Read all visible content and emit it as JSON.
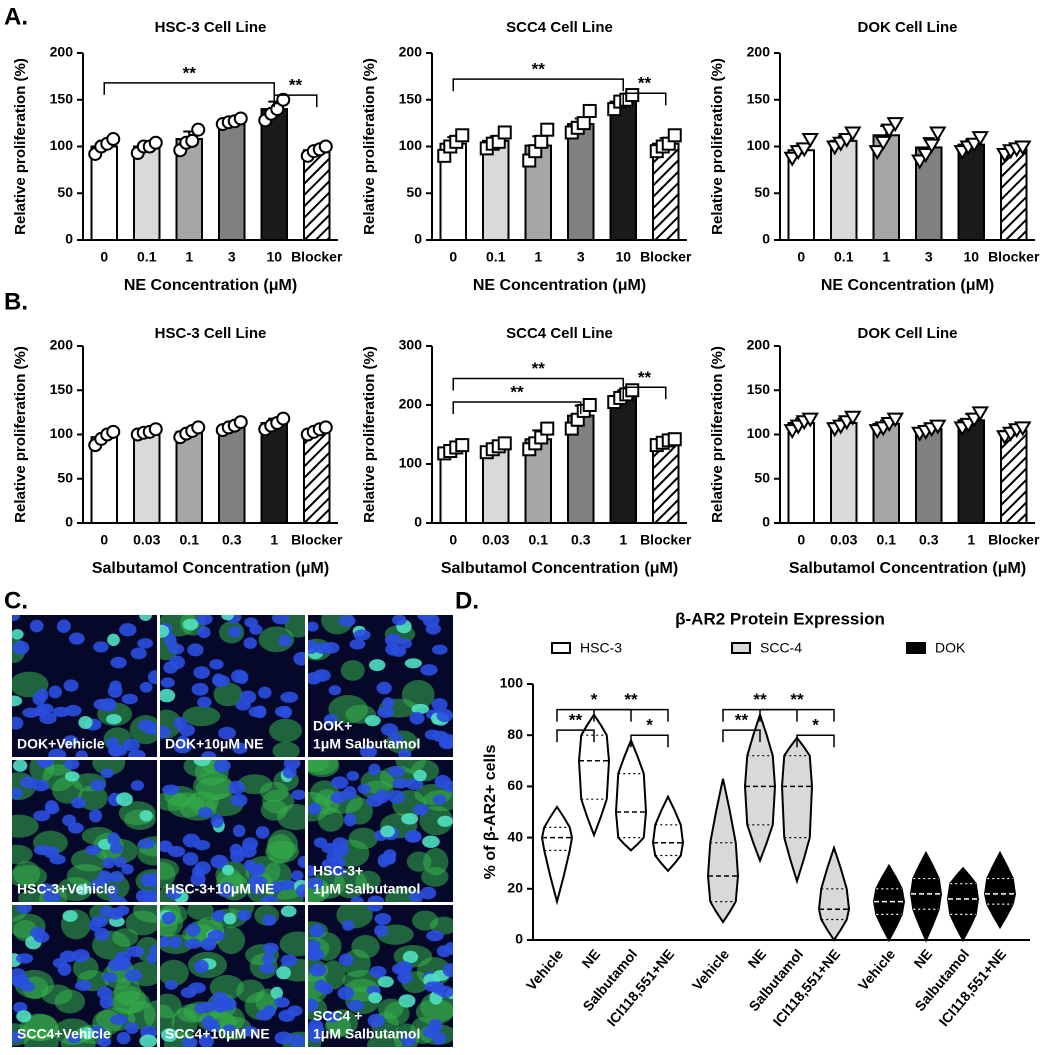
{
  "panel_labels": [
    "A.",
    "B.",
    "C.",
    "D."
  ],
  "panel_c": {
    "labels": [
      [
        "DOK+Vehicle"
      ],
      [
        "DOK+10μM NE"
      ],
      [
        "DOK+",
        "1μM Salbutamol"
      ],
      [
        "HSC-3+Vehicle"
      ],
      [
        "HSC-3+10μM NE"
      ],
      [
        "HSC-3+",
        "1μM Salbutamol"
      ],
      [
        "SCC4+Vehicle"
      ],
      [
        "SCC4+10μM NE"
      ],
      [
        "SCC4 +",
        "1μM Salbutamol"
      ]
    ]
  },
  "chart_data": [
    {
      "type": "bar",
      "title": "HSC-3 Cell Line",
      "x_label": "NE Concentration (μM)",
      "y_label": "Relative proliferation  (%)",
      "marker": "circle",
      "categories": [
        "0",
        "0.1",
        "1",
        "3",
        "10",
        "Blocker"
      ],
      "values": [
        100,
        100,
        108,
        127,
        140,
        96
      ],
      "errors": [
        6,
        5,
        8,
        3,
        8,
        4
      ],
      "points": [
        [
          92,
          100,
          103,
          108
        ],
        [
          93,
          100,
          100,
          104
        ],
        [
          96,
          104,
          106,
          118
        ],
        [
          124,
          126,
          127,
          130
        ],
        [
          128,
          135,
          140,
          150
        ],
        [
          90,
          95,
          97,
          100
        ]
      ],
      "colors": [
        "#ffffff",
        "#d9d9d9",
        "#a6a6a6",
        "#808080",
        "#1a1a1a",
        "#ffffff"
      ],
      "patterns": [
        "solid",
        "solid",
        "solid",
        "solid",
        "solid",
        "hatch"
      ],
      "ylim": [
        0,
        200
      ],
      "yticks": [
        0,
        50,
        100,
        150,
        200
      ],
      "annotations": [
        {
          "text": "**",
          "from": 0,
          "to": 4,
          "y": 168
        },
        {
          "text": "**",
          "from": 4,
          "to": 5,
          "y": 155
        }
      ]
    },
    {
      "type": "bar",
      "title": "SCC4 Cell Line",
      "x_label": "NE Concentration (μM)",
      "y_label": "Relative proliferation  (%)",
      "marker": "square",
      "categories": [
        "0",
        "0.1",
        "1",
        "3",
        "10",
        "Blocker"
      ],
      "values": [
        103,
        106,
        101,
        124,
        148,
        103
      ],
      "errors": [
        7,
        5,
        10,
        6,
        6,
        6
      ],
      "points": [
        [
          90,
          100,
          105,
          112
        ],
        [
          98,
          103,
          105,
          115
        ],
        [
          85,
          95,
          105,
          118
        ],
        [
          115,
          120,
          125,
          138
        ],
        [
          140,
          148,
          150,
          155
        ],
        [
          95,
          100,
          103,
          112
        ]
      ],
      "colors": [
        "#ffffff",
        "#d9d9d9",
        "#a6a6a6",
        "#808080",
        "#1a1a1a",
        "#ffffff"
      ],
      "patterns": [
        "solid",
        "solid",
        "solid",
        "solid",
        "solid",
        "hatch"
      ],
      "ylim": [
        0,
        200
      ],
      "yticks": [
        0,
        50,
        100,
        150,
        200
      ],
      "annotations": [
        {
          "text": "**",
          "from": 0,
          "to": 4,
          "y": 172
        },
        {
          "text": "**",
          "from": 4,
          "to": 5,
          "y": 157
        }
      ]
    },
    {
      "type": "bar",
      "title": "DOK  Cell Line",
      "x_label": "NE Concentration (μM)",
      "y_label": "Relative proliferation  (%)",
      "marker": "triangle",
      "categories": [
        "0",
        "0.1",
        "1",
        "3",
        "10",
        "Blocker"
      ],
      "values": [
        96,
        106,
        112,
        99,
        102,
        97
      ],
      "errors": [
        5,
        5,
        10,
        10,
        5,
        3
      ],
      "points": [
        [
          88,
          95,
          98,
          108
        ],
        [
          100,
          104,
          108,
          115
        ],
        [
          95,
          105,
          118,
          125
        ],
        [
          85,
          92,
          102,
          115
        ],
        [
          95,
          100,
          103,
          110
        ],
        [
          92,
          96,
          98,
          100
        ]
      ],
      "colors": [
        "#ffffff",
        "#d9d9d9",
        "#a6a6a6",
        "#808080",
        "#1a1a1a",
        "#ffffff"
      ],
      "patterns": [
        "solid",
        "solid",
        "solid",
        "solid",
        "solid",
        "hatch"
      ],
      "ylim": [
        0,
        200
      ],
      "yticks": [
        0,
        50,
        100,
        150,
        200
      ]
    },
    {
      "type": "bar",
      "title": "HSC-3 Cell Line",
      "x_label": "Salbutamol Concentration (μM)",
      "y_label": "Relative proliferation  (%)",
      "marker": "circle",
      "categories": [
        "0",
        "0.03",
        "0.1",
        "0.3",
        "1",
        "Blocker"
      ],
      "values": [
        97,
        103,
        103,
        110,
        113,
        105
      ],
      "errors": [
        4,
        2,
        4,
        3,
        5,
        2
      ],
      "points": [
        [
          88,
          95,
          100,
          103
        ],
        [
          100,
          102,
          103,
          106
        ],
        [
          97,
          101,
          104,
          108
        ],
        [
          105,
          108,
          110,
          114
        ],
        [
          106,
          110,
          113,
          118
        ],
        [
          100,
          103,
          106,
          108
        ]
      ],
      "colors": [
        "#ffffff",
        "#d9d9d9",
        "#a6a6a6",
        "#808080",
        "#1a1a1a",
        "#ffffff"
      ],
      "patterns": [
        "solid",
        "solid",
        "solid",
        "solid",
        "solid",
        "hatch"
      ],
      "ylim": [
        0,
        200
      ],
      "yticks": [
        0,
        50,
        100,
        150,
        200
      ]
    },
    {
      "type": "bar",
      "title": "SCC4 Cell  Line",
      "x_label": "Salbutamol Concentration (μM)",
      "y_label": "Relative proliferation  (%)",
      "marker": "square",
      "categories": [
        "0",
        "0.03",
        "0.1",
        "0.3",
        "1",
        "Blocker"
      ],
      "values": [
        125,
        128,
        142,
        182,
        215,
        138
      ],
      "errors": [
        5,
        6,
        15,
        17,
        10,
        5
      ],
      "points": [
        [
          118,
          122,
          128,
          132
        ],
        [
          120,
          125,
          130,
          135
        ],
        [
          125,
          135,
          145,
          160
        ],
        [
          160,
          175,
          190,
          200
        ],
        [
          205,
          212,
          218,
          225
        ],
        [
          132,
          136,
          140,
          142
        ]
      ],
      "colors": [
        "#ffffff",
        "#d9d9d9",
        "#a6a6a6",
        "#808080",
        "#1a1a1a",
        "#ffffff"
      ],
      "patterns": [
        "solid",
        "solid",
        "solid",
        "solid",
        "solid",
        "hatch"
      ],
      "ylim": [
        0,
        300
      ],
      "yticks": [
        0,
        100,
        200,
        300
      ],
      "annotations": [
        {
          "text": "**",
          "from": 0,
          "to": 3,
          "y": 205
        },
        {
          "text": "**",
          "from": 0,
          "to": 4,
          "y": 245
        },
        {
          "text": "**",
          "from": 4,
          "to": 5,
          "y": 230
        }
      ]
    },
    {
      "type": "bar",
      "title": "DOK  Cell Line",
      "x_label": "Salbutamol Concentration (μM)",
      "y_label": "Relative proliferation  (%)",
      "marker": "triangle",
      "categories": [
        "0",
        "0.03",
        "0.1",
        "0.3",
        "1",
        "Blocker"
      ],
      "values": [
        113,
        113,
        112,
        106,
        116,
        104
      ],
      "errors": [
        5,
        5,
        4,
        4,
        7,
        4
      ],
      "points": [
        [
          105,
          110,
          115,
          118
        ],
        [
          107,
          110,
          115,
          120
        ],
        [
          105,
          108,
          113,
          118
        ],
        [
          102,
          104,
          107,
          110
        ],
        [
          108,
          112,
          118,
          125
        ],
        [
          98,
          102,
          106,
          108
        ]
      ],
      "colors": [
        "#ffffff",
        "#d9d9d9",
        "#a6a6a6",
        "#808080",
        "#1a1a1a",
        "#ffffff"
      ],
      "patterns": [
        "solid",
        "solid",
        "solid",
        "solid",
        "solid",
        "hatch"
      ],
      "ylim": [
        0,
        200
      ],
      "yticks": [
        0,
        50,
        100,
        150,
        200
      ]
    },
    {
      "type": "violin",
      "title": "β-AR2 Protein Expression",
      "y_label": "% of β-AR2+ cells",
      "categories": [
        "Vehicle",
        "NE",
        "Salbutamol",
        "ICI118,551+NE"
      ],
      "series": [
        {
          "name": "HSC-3",
          "color": "#ffffff",
          "values": [
            40,
            70,
            50,
            38
          ],
          "min": [
            15,
            41,
            35,
            27
          ],
          "q1": [
            35,
            55,
            40,
            33
          ],
          "q3": [
            44,
            80,
            65,
            45
          ],
          "max": [
            52,
            88,
            78,
            56
          ]
        },
        {
          "name": "SCC-4",
          "color": "#d9d9d9",
          "values": [
            25,
            60,
            60,
            12
          ],
          "min": [
            7,
            31,
            23,
            0
          ],
          "q1": [
            15,
            45,
            40,
            8
          ],
          "q3": [
            38,
            72,
            72,
            20
          ],
          "max": [
            63,
            88,
            79,
            36
          ]
        },
        {
          "name": "DOK",
          "color": "#000000",
          "values": [
            15,
            18,
            16,
            18
          ],
          "min": [
            0,
            0,
            0,
            5
          ],
          "q1": [
            10,
            12,
            10,
            14
          ],
          "q3": [
            20,
            24,
            22,
            24
          ],
          "max": [
            29,
            34,
            28,
            34
          ]
        }
      ],
      "ylim": [
        0,
        100
      ],
      "yticks": [
        0,
        20,
        40,
        60,
        80,
        100
      ],
      "annotations": [
        {
          "text": "*",
          "series": 0,
          "from": 0,
          "to": 2,
          "y": 90
        },
        {
          "text": "**",
          "series": 0,
          "from": 0,
          "to": 1,
          "y": 82
        },
        {
          "text": "**",
          "series": 0,
          "from": 1,
          "to": 3,
          "y": 90
        },
        {
          "text": "*",
          "series": 0,
          "from": 2,
          "to": 3,
          "y": 80
        },
        {
          "text": "**",
          "series": 1,
          "from": 0,
          "to": 2,
          "y": 90
        },
        {
          "text": "**",
          "series": 1,
          "from": 0,
          "to": 1,
          "y": 82
        },
        {
          "text": "**",
          "series": 1,
          "from": 1,
          "to": 3,
          "y": 90
        },
        {
          "text": "*",
          "series": 1,
          "from": 2,
          "to": 3,
          "y": 80
        }
      ]
    }
  ]
}
